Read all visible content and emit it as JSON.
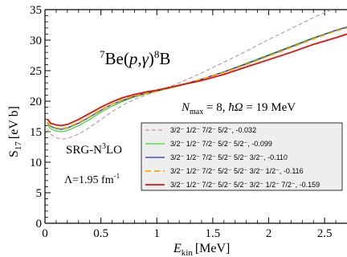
{
  "chart_data": {
    "type": "line",
    "xlabel": "E",
    "xlabel_sub": "kin",
    "xlabel_unit": "[MeV]",
    "ylabel": "S",
    "ylabel_sub": "17",
    "ylabel_unit": "[eV b]",
    "xlim": [
      0,
      2.7
    ],
    "ylim": [
      0,
      35
    ],
    "xticks": [
      0,
      0.5,
      1,
      1.5,
      2,
      2.5
    ],
    "xtick_labels": [
      "0",
      "0.5",
      "1",
      "1.5",
      "2",
      "2.5"
    ],
    "yticks": [
      0,
      5,
      10,
      15,
      20,
      25,
      30,
      35
    ],
    "ytick_labels": [
      "0",
      "5",
      "10",
      "15",
      "20",
      "25",
      "30",
      "35"
    ],
    "legend_position": "lower-right",
    "annotations": {
      "reaction": {
        "sup1": "7",
        "text1": "Be(",
        "p": "p",
        "comma": ",",
        "gamma": "γ",
        "text2": ")",
        "sup2": "8",
        "text3": "B"
      },
      "params": {
        "N": "N",
        "N_sub": "max",
        "rest": " = 8,  ",
        "hbar": "ħΩ",
        "tail": " = 19 MeV"
      },
      "method": {
        "pre": "SRG-N",
        "sup": "3",
        "post": "LO"
      },
      "lambda": {
        "pre": "Λ=1.95 fm",
        "sup": "-1"
      }
    },
    "series": [
      {
        "name": "3/2⁻ 1/2⁻ 7/2⁻ 5/2⁻, -0.032",
        "color": "#c89a9a",
        "dash": "5,3",
        "width": 1.2,
        "x": [
          0.02,
          0.05,
          0.1,
          0.15,
          0.2,
          0.3,
          0.4,
          0.5,
          0.6,
          0.7,
          0.8,
          0.9,
          1.0,
          1.2,
          1.4,
          1.6,
          1.8,
          2.0,
          2.2,
          2.4,
          2.6,
          2.7
        ],
        "y": [
          15.5,
          14.6,
          14.0,
          13.8,
          13.9,
          14.6,
          15.7,
          17.0,
          18.3,
          19.4,
          20.3,
          21.0,
          21.6,
          23.0,
          24.6,
          26.4,
          28.2,
          30.1,
          31.9,
          33.7,
          35.3,
          36.0
        ]
      },
      {
        "name": "3/2⁻ 1/2⁻ 7/2⁻ 5/2⁻ 5/2⁻, -0.099",
        "color": "#33dd33",
        "dash": "",
        "width": 1.3,
        "x": [
          0.02,
          0.05,
          0.1,
          0.15,
          0.2,
          0.3,
          0.4,
          0.5,
          0.6,
          0.7,
          0.8,
          0.9,
          1.0,
          1.2,
          1.4,
          1.6,
          1.8,
          2.0,
          2.2,
          2.4,
          2.6,
          2.7
        ],
        "y": [
          16.2,
          15.5,
          15.1,
          15.0,
          15.2,
          16.0,
          17.0,
          18.2,
          19.2,
          20.0,
          20.7,
          21.2,
          21.6,
          22.5,
          23.6,
          24.8,
          26.2,
          27.6,
          29.0,
          30.4,
          31.6,
          32.2
        ]
      },
      {
        "name": "3/2⁻ 1/2⁻ 7/2⁻ 5/2⁻ 5/2⁻ 3/2⁻, -0.110",
        "color": "#1f2fbf",
        "dash": "",
        "width": 1.3,
        "x": [
          0.02,
          0.05,
          0.1,
          0.15,
          0.2,
          0.3,
          0.4,
          0.5,
          0.6,
          0.7,
          0.8,
          0.9,
          1.0,
          1.2,
          1.4,
          1.6,
          1.8,
          2.0,
          2.2,
          2.4,
          2.6,
          2.7
        ],
        "y": [
          16.5,
          15.9,
          15.5,
          15.4,
          15.6,
          16.4,
          17.4,
          18.5,
          19.5,
          20.2,
          20.8,
          21.3,
          21.7,
          22.6,
          23.6,
          24.8,
          26.1,
          27.5,
          28.9,
          30.3,
          31.6,
          32.1
        ]
      },
      {
        "name": "3/2⁻ 1/2⁻ 7/2⁻ 5/2⁻ 5/2⁻ 3/2⁻ 1/2⁻, -0.116",
        "color": "#ffaa00",
        "dash": "7,4",
        "width": 1.8,
        "x": [
          0.02,
          0.05,
          0.1,
          0.15,
          0.2,
          0.3,
          0.4,
          0.5,
          0.6,
          0.7,
          0.8,
          0.9,
          1.0,
          1.2,
          1.4,
          1.6,
          1.8,
          2.0,
          2.2,
          2.4,
          2.6,
          2.7
        ],
        "y": [
          16.6,
          16.0,
          15.6,
          15.5,
          15.7,
          16.5,
          17.5,
          18.6,
          19.5,
          20.3,
          20.9,
          21.3,
          21.7,
          22.6,
          23.6,
          24.7,
          26.0,
          27.4,
          28.8,
          30.2,
          31.5,
          32.0
        ]
      },
      {
        "name": "3/2⁻ 1/2⁻ 7/2⁻ 5/2⁻ 5/2⁻ 3/2⁻ 1/2⁻ 7/2⁻, -0.159",
        "color": "#e01010",
        "dash": "",
        "width": 1.8,
        "x": [
          0.02,
          0.05,
          0.1,
          0.15,
          0.2,
          0.3,
          0.4,
          0.5,
          0.6,
          0.7,
          0.8,
          0.9,
          1.0,
          1.2,
          1.4,
          1.6,
          1.8,
          2.0,
          2.2,
          2.4,
          2.6,
          2.7
        ],
        "y": [
          17.1,
          16.4,
          16.1,
          16.0,
          16.2,
          17.0,
          18.0,
          19.0,
          19.9,
          20.6,
          21.1,
          21.5,
          21.8,
          22.6,
          23.4,
          24.4,
          25.6,
          26.8,
          28.0,
          29.3,
          30.4,
          31.0
        ]
      }
    ]
  }
}
